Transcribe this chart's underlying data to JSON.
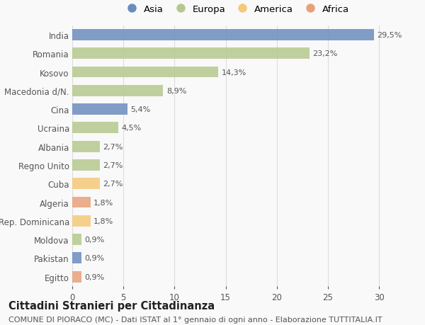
{
  "categories": [
    "India",
    "Romania",
    "Kosovo",
    "Macedonia d/N.",
    "Cina",
    "Ucraina",
    "Albania",
    "Regno Unito",
    "Cuba",
    "Algeria",
    "Rep. Dominicana",
    "Moldova",
    "Pakistan",
    "Egitto"
  ],
  "values": [
    29.5,
    23.2,
    14.3,
    8.9,
    5.4,
    4.5,
    2.7,
    2.7,
    2.7,
    1.8,
    1.8,
    0.9,
    0.9,
    0.9
  ],
  "labels": [
    "29,5%",
    "23,2%",
    "14,3%",
    "8,9%",
    "5,4%",
    "4,5%",
    "2,7%",
    "2,7%",
    "2,7%",
    "1,8%",
    "1,8%",
    "0,9%",
    "0,9%",
    "0,9%"
  ],
  "colors": [
    "#6b8cbf",
    "#b5c98e",
    "#b5c98e",
    "#b5c98e",
    "#6b8cbf",
    "#b5c98e",
    "#b5c98e",
    "#b5c98e",
    "#f5c97a",
    "#e8a07a",
    "#f5c97a",
    "#b5c98e",
    "#6b8cbf",
    "#e8a07a"
  ],
  "legend_labels": [
    "Asia",
    "Europa",
    "America",
    "Africa"
  ],
  "legend_colors": [
    "#6b8cbf",
    "#b5c98e",
    "#f5c97a",
    "#e8a07a"
  ],
  "title": "Cittadini Stranieri per Cittadinanza",
  "subtitle": "COMUNE DI PIORACO (MC) - Dati ISTAT al 1° gennaio di ogni anno - Elaborazione TUTTITALIA.IT",
  "xlim": [
    0,
    32
  ],
  "xticks": [
    0,
    5,
    10,
    15,
    20,
    25,
    30
  ],
  "background_color": "#f9f9f9",
  "grid_color": "#dddddd",
  "bar_height": 0.6,
  "title_fontsize": 10.5,
  "subtitle_fontsize": 8,
  "label_fontsize": 8,
  "tick_fontsize": 8.5,
  "legend_fontsize": 9.5
}
